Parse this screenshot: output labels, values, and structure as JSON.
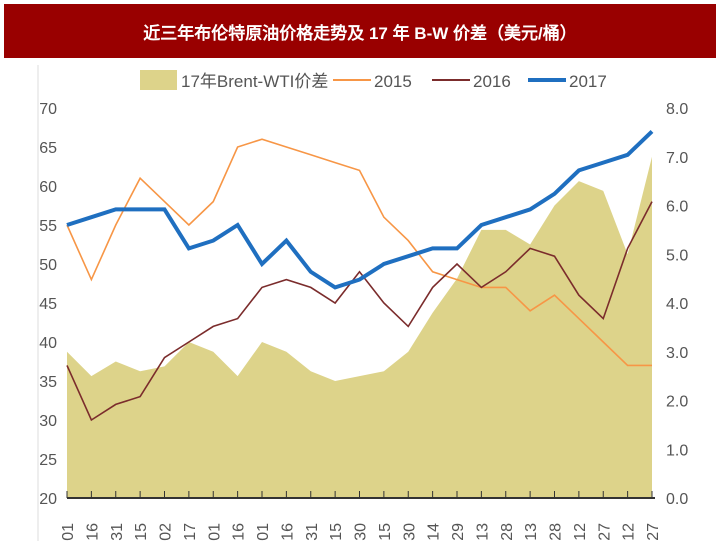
{
  "chart_data": {
    "type": "line",
    "title": "近三年布伦特原油价格走势及 17 年 B-W 价差（美元/桶）",
    "categories": [
      "01",
      "16",
      "31",
      "15",
      "02",
      "17",
      "01",
      "16",
      "01",
      "16",
      "31",
      "15",
      "30",
      "15",
      "30",
      "14",
      "29",
      "13",
      "28",
      "13",
      "28",
      "12",
      "27",
      "12",
      "27"
    ],
    "ylim": [
      20,
      70
    ],
    "yticks": [
      20,
      25,
      30,
      35,
      40,
      45,
      50,
      55,
      60,
      65,
      70
    ],
    "y2lim": [
      0,
      8
    ],
    "y2ticks": [
      "0.0",
      "1.0",
      "2.0",
      "3.0",
      "4.0",
      "5.0",
      "6.0",
      "7.0",
      "8.0"
    ],
    "legend": "top",
    "series": [
      {
        "name": "17年Brent-WTI价差",
        "type": "area",
        "axis": "right",
        "color": "#ddd38a",
        "values": [
          3.0,
          2.5,
          2.8,
          2.6,
          2.7,
          3.2,
          3.0,
          2.5,
          3.2,
          3.0,
          2.6,
          2.4,
          2.5,
          2.6,
          3.0,
          3.8,
          4.5,
          5.5,
          5.5,
          5.2,
          6.0,
          6.5,
          6.3,
          5.0,
          7.0
        ]
      },
      {
        "name": "2015",
        "type": "line",
        "axis": "left",
        "color": "#f79646",
        "values": [
          55,
          48,
          55,
          61,
          58,
          55,
          58,
          65,
          66,
          65,
          64,
          63,
          62,
          56,
          53,
          49,
          48,
          47,
          47,
          44,
          46,
          43,
          40,
          37,
          37
        ]
      },
      {
        "name": "2016",
        "type": "line",
        "axis": "left",
        "color": "#7b2c2c",
        "values": [
          37,
          30,
          32,
          33,
          38,
          40,
          42,
          43,
          47,
          48,
          47,
          45,
          49,
          45,
          42,
          47,
          50,
          47,
          49,
          52,
          51,
          46,
          43,
          52,
          58
        ]
      },
      {
        "name": "2017",
        "type": "line",
        "axis": "left",
        "color": "#1f6fc0",
        "values": [
          55,
          56,
          57,
          57,
          57,
          52,
          53,
          55,
          50,
          53,
          49,
          47,
          48,
          50,
          51,
          52,
          52,
          55,
          56,
          57,
          59,
          62,
          63,
          64,
          67
        ]
      }
    ]
  }
}
